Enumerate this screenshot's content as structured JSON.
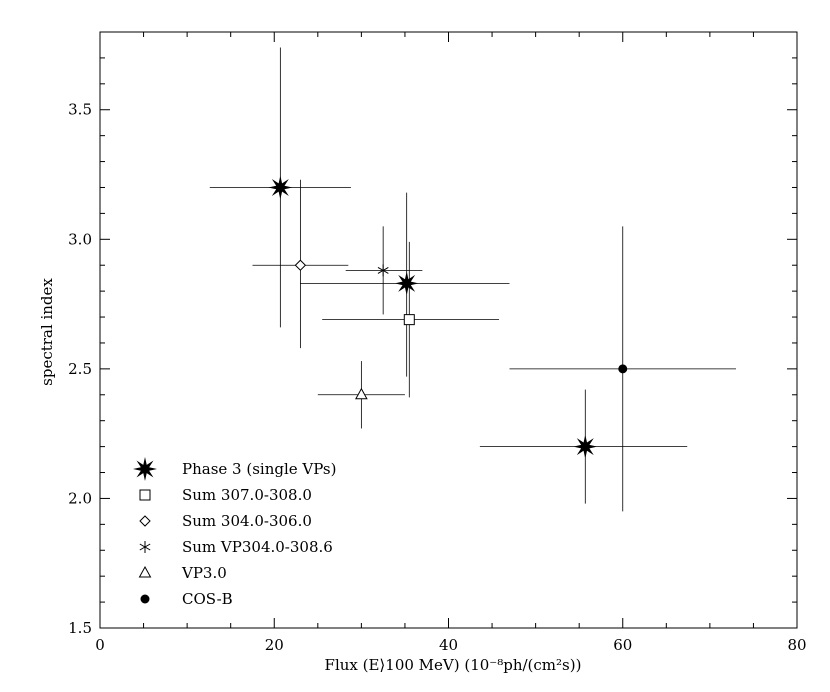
{
  "chart_data": {
    "type": "scatter",
    "title": "",
    "xlabel": "Flux (E⟩100 MeV) (10⁻⁸ph/(cm²s))",
    "ylabel": "spectral index",
    "xlim": [
      0,
      80
    ],
    "ylim": [
      1.5,
      3.8
    ],
    "x_ticks": [
      "0",
      "20",
      "40",
      "60",
      "80"
    ],
    "y_ticks": [
      "1.5",
      "2.0",
      "2.5",
      "3.0",
      "3.5"
    ],
    "legend_position": "bottom-left",
    "grid": false,
    "series": [
      {
        "name": "Phase 3 (single VPs)",
        "marker": "star-burst",
        "points": [
          {
            "x": 20.7,
            "y": 3.2,
            "xerr": [
              12.6,
              28.8
            ],
            "yerr": [
              2.66,
              3.74
            ]
          },
          {
            "x": 35.2,
            "y": 2.83,
            "xerr": [
              23.0,
              47.0
            ],
            "yerr": [
              2.47,
              3.18
            ]
          },
          {
            "x": 55.7,
            "y": 2.2,
            "xerr": [
              43.6,
              67.4
            ],
            "yerr": [
              1.98,
              2.42
            ]
          }
        ]
      },
      {
        "name": "Sum 307.0-308.0",
        "marker": "square",
        "points": [
          {
            "x": 35.5,
            "y": 2.69,
            "xerr": [
              25.5,
              45.8
            ],
            "yerr": [
              2.39,
              2.99
            ]
          }
        ]
      },
      {
        "name": "Sum 304.0-306.0",
        "marker": "diamond",
        "points": [
          {
            "x": 23.0,
            "y": 2.9,
            "xerr": [
              17.5,
              28.5
            ],
            "yerr": [
              2.58,
              3.23
            ]
          }
        ]
      },
      {
        "name": "Sum VP304.0-308.6",
        "marker": "asterisk",
        "points": [
          {
            "x": 32.5,
            "y": 2.88,
            "xerr": [
              28.2,
              37.0
            ],
            "yerr": [
              2.71,
              3.05
            ]
          }
        ]
      },
      {
        "name": "VP3.0",
        "marker": "triangle",
        "points": [
          {
            "x": 30.0,
            "y": 2.4,
            "xerr": [
              25.0,
              35.0
            ],
            "yerr": [
              2.27,
              2.53
            ]
          }
        ]
      },
      {
        "name": "COS-B",
        "marker": "filled-circle",
        "points": [
          {
            "x": 60.0,
            "y": 2.5,
            "xerr": [
              47.0,
              73.0
            ],
            "yerr": [
              1.95,
              3.05
            ]
          }
        ]
      }
    ]
  }
}
